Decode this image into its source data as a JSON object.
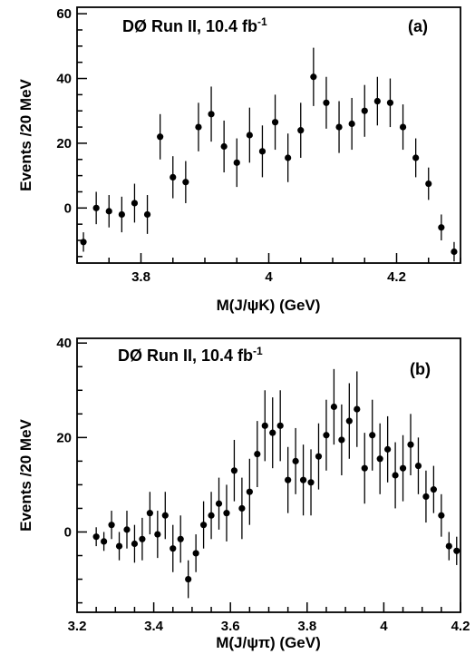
{
  "chart_data": [
    {
      "type": "scatter",
      "panel_label": "(a)",
      "title_main": "DØ Run II, 10.4 fb",
      "title_sup": "-1",
      "xlabel": "M(J/ψK) (GeV)",
      "ylabel": "Events /20 MeV",
      "xlim": [
        3.7,
        4.3
      ],
      "ylim": [
        -17,
        62
      ],
      "xticks": [
        "3.8",
        "4",
        "4.2"
      ],
      "xtick_values": [
        3.8,
        4.0,
        4.2
      ],
      "yticks": [
        "0",
        "20",
        "40",
        "60"
      ],
      "ytick_values": [
        0,
        20,
        40,
        60
      ],
      "x": [
        3.71,
        3.73,
        3.75,
        3.77,
        3.79,
        3.81,
        3.83,
        3.85,
        3.87,
        3.89,
        3.91,
        3.93,
        3.95,
        3.97,
        3.99,
        4.01,
        4.03,
        4.05,
        4.07,
        4.09,
        4.11,
        4.13,
        4.15,
        4.17,
        4.19,
        4.21,
        4.23,
        4.25,
        4.27,
        4.29
      ],
      "y": [
        -10.5,
        0,
        -1,
        -2,
        1.5,
        -2,
        22,
        9.5,
        8,
        25,
        29,
        19,
        14,
        22.5,
        17.5,
        26.5,
        15.5,
        24,
        40.5,
        32.5,
        25,
        26,
        30,
        33,
        32.5,
        25,
        15.5,
        7.5,
        -6,
        -13.5
      ],
      "yerr": [
        3,
        5,
        5,
        5.5,
        6,
        6,
        7,
        6.5,
        6.5,
        7.5,
        8.5,
        8,
        7.5,
        8.5,
        8,
        8.5,
        7.5,
        8.5,
        9,
        8,
        8,
        8,
        8,
        7.5,
        7.5,
        7,
        6,
        5,
        4,
        3
      ]
    },
    {
      "type": "scatter",
      "panel_label": "(b)",
      "title_main": "DØ Run II, 10.4 fb",
      "title_sup": "-1",
      "xlabel": "M(J/ψπ) (GeV)",
      "ylabel": "Events /20 MeV",
      "xlim": [
        3.2,
        4.2
      ],
      "ylim": [
        -17,
        41
      ],
      "xticks": [
        "3.2",
        "3.4",
        "3.6",
        "3.8",
        "4",
        "4.2"
      ],
      "xtick_values": [
        3.2,
        3.4,
        3.6,
        3.8,
        4.0,
        4.2
      ],
      "yticks": [
        "0",
        "20",
        "40"
      ],
      "ytick_values": [
        0,
        20,
        40
      ],
      "x": [
        3.25,
        3.27,
        3.29,
        3.31,
        3.33,
        3.35,
        3.37,
        3.39,
        3.41,
        3.43,
        3.45,
        3.47,
        3.49,
        3.51,
        3.53,
        3.55,
        3.57,
        3.59,
        3.61,
        3.63,
        3.65,
        3.67,
        3.69,
        3.71,
        3.73,
        3.75,
        3.77,
        3.79,
        3.81,
        3.83,
        3.85,
        3.87,
        3.89,
        3.91,
        3.93,
        3.95,
        3.97,
        3.99,
        4.01,
        4.03,
        4.05,
        4.07,
        4.09,
        4.11,
        4.13,
        4.15,
        4.17,
        4.19
      ],
      "y": [
        -1,
        -2,
        1.5,
        -3,
        0.5,
        -2.5,
        -1.5,
        4,
        -0.5,
        3.5,
        -3.5,
        -1.5,
        -10,
        -4.5,
        1.5,
        3.5,
        6,
        4,
        13,
        5,
        8.5,
        16.5,
        22.5,
        21,
        22.5,
        11,
        15,
        11,
        10.5,
        16,
        20.5,
        26.5,
        19.5,
        23.5,
        26,
        13.5,
        20.5,
        15.5,
        17.5,
        12,
        13.5,
        18.5,
        14,
        7.5,
        9,
        3.5,
        -3,
        -4
      ],
      "yerr": [
        2,
        2,
        3,
        3,
        4,
        4,
        4.5,
        4.5,
        5,
        5,
        5,
        5,
        4,
        4,
        5,
        5,
        5.5,
        6,
        6.5,
        6.5,
        7,
        7,
        7.5,
        7.5,
        7.5,
        7,
        7,
        7.5,
        7,
        7,
        7.5,
        8,
        7.5,
        8,
        8,
        7.5,
        7.5,
        7.5,
        7,
        7,
        7,
        6.5,
        6,
        5.5,
        5,
        4.5,
        3,
        3
      ]
    }
  ]
}
